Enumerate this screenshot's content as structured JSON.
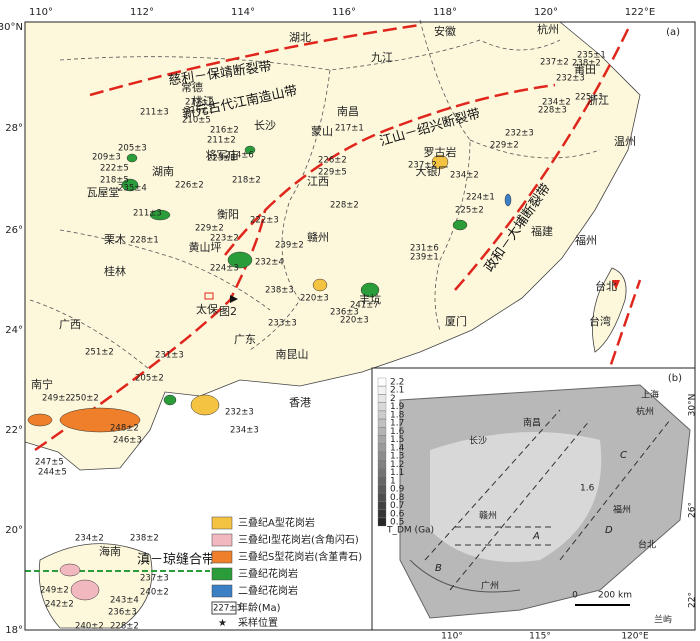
{
  "map": {
    "panel_label": "(a)",
    "lon_labels": [
      "110°",
      "112°",
      "114°",
      "116°",
      "118°",
      "120°",
      "122°E"
    ],
    "lat_labels": [
      "30°N",
      "28°",
      "26°",
      "24°",
      "22°",
      "20°",
      "18°"
    ],
    "places": [
      "湖北",
      "安徽",
      "九江",
      "杭州",
      "常德",
      "桃江",
      "长沙",
      "南昌",
      "浙江",
      "温州",
      "江西",
      "湖南",
      "瓦屋堂",
      "赣州",
      "福建",
      "福州",
      "桂林",
      "广西",
      "广东",
      "厦门",
      "台湾",
      "台北",
      "香港",
      "南宁",
      "海南",
      "罗古岩",
      "大银厂",
      "蒙山",
      "莆田",
      "丰坑",
      "图2",
      "太保",
      "南昆山",
      "栗木",
      "黄山坪",
      "衡阳",
      "将军庙"
    ],
    "faults": [
      "慈利－保靖断裂带",
      "新元古代江南造山带",
      "江山－绍兴断裂带",
      "政和－大埔断裂带",
      "滇－琼缝合带"
    ],
    "ages": [
      "211±3",
      "217±2",
      "216±1",
      "210±5",
      "216±2",
      "211±2",
      "214±6",
      "205±3",
      "209±3",
      "222±5",
      "218±5",
      "235±4",
      "223±1",
      "226±2",
      "218±2",
      "211±3",
      "228±1",
      "229±2",
      "223±2",
      "224±3",
      "222±3",
      "239±2",
      "232±4",
      "238±3",
      "233±3",
      "220±3",
      "236±3",
      "220±3",
      "217±1",
      "226±2",
      "229±5",
      "228±2",
      "237±2",
      "234±2",
      "232±3",
      "229±2",
      "224±1",
      "225±2",
      "231±6",
      "239±1",
      "241±7",
      "235±1",
      "238±2",
      "237±2",
      "232±3",
      "228±3",
      "234±2",
      "225±1",
      "251±2",
      "249±2",
      "250±2",
      "247±5",
      "244±5",
      "231±3",
      "205±2",
      "232±3",
      "234±3",
      "246±3",
      "248±2",
      "234±2",
      "238±2",
      "237±3",
      "240±2",
      "243±4",
      "236±3",
      "242±2",
      "249±2",
      "240±2",
      "228±2"
    ],
    "legend": [
      {
        "label": "三叠纪A型花岗岩",
        "color": "#f5c342"
      },
      {
        "label": "三叠纪I型花岗岩(含角闪石)",
        "color": "#f2b8c0"
      },
      {
        "label": "三叠纪S型花岗岩(含堇青石)",
        "color": "#ef7f2a"
      },
      {
        "label": "三叠纪花岗岩",
        "color": "#2b9c3a"
      },
      {
        "label": "二叠纪花岗岩",
        "color": "#3b7fc4"
      }
    ],
    "legend_age_sample": "227±3",
    "legend_age_label": "年龄(Ma)",
    "legend_sample_label": "采样位置",
    "inset": {
      "panel_label": "(b)",
      "colorbar_title": "T_DM (Ga)",
      "colorbar_ticks": [
        2.2,
        2.1,
        2.0,
        1.9,
        1.8,
        1.7,
        1.6,
        1.5,
        1.4,
        1.3,
        1.2,
        1.1,
        1.0,
        0.9,
        0.8,
        0.7,
        0.6,
        0.5
      ],
      "lon_labels": [
        "110°",
        "115°",
        "120°E"
      ],
      "lat_labels": [
        "30°N",
        "26°",
        "22°"
      ],
      "places": [
        "上海",
        "杭州",
        "南昌",
        "长沙",
        "赣州",
        "福州",
        "广州",
        "台北",
        "兰屿"
      ],
      "zones": [
        "A",
        "B",
        "C",
        "D"
      ],
      "contour_label": "1.6",
      "scale_labels": [
        "0",
        "200 km"
      ]
    }
  }
}
